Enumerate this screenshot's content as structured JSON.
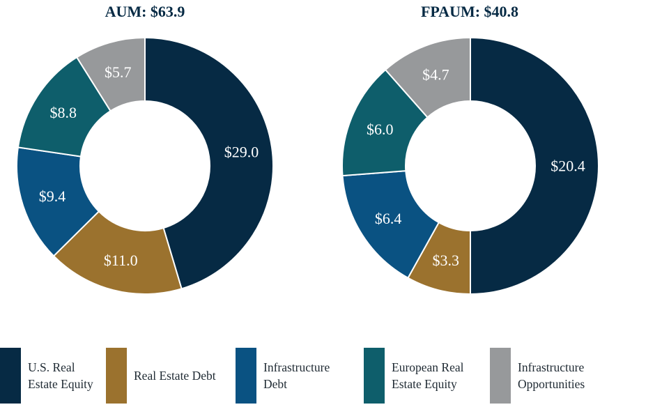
{
  "chart_data": [
    {
      "type": "pie",
      "variant": "donut",
      "title": "AUM: $63.9",
      "categories": [
        "U.S. Real Estate Equity",
        "Real Estate Debt",
        "Infrastructure Debt",
        "European Real Estate Equity",
        "Infrastructure Opportunities"
      ],
      "values": [
        29.0,
        11.0,
        9.4,
        8.8,
        5.7
      ],
      "labels": [
        "$29.0",
        "$11.0",
        "$9.4",
        "$8.8",
        "$5.7"
      ]
    },
    {
      "type": "pie",
      "variant": "donut",
      "title": "FPAUM: $40.8",
      "categories": [
        "U.S. Real Estate Equity",
        "Real Estate Debt",
        "Infrastructure Debt",
        "European Real Estate Equity",
        "Infrastructure Opportunities"
      ],
      "values": [
        20.4,
        3.3,
        6.4,
        6.0,
        4.7
      ],
      "labels": [
        "$20.4",
        "$3.3",
        "$6.4",
        "$6.0",
        "$4.7"
      ]
    }
  ],
  "legend": [
    {
      "label": "U.S. Real Estate Equity",
      "color": "#062a44"
    },
    {
      "label": "Real Estate Debt",
      "color": "#9b722e"
    },
    {
      "label": "Infrastructure Debt",
      "color": "#0a5282"
    },
    {
      "label": "European Real Estate Equity",
      "color": "#0e5e6b"
    },
    {
      "label": "Infrastructure Opportunities",
      "color": "#97999b"
    }
  ]
}
